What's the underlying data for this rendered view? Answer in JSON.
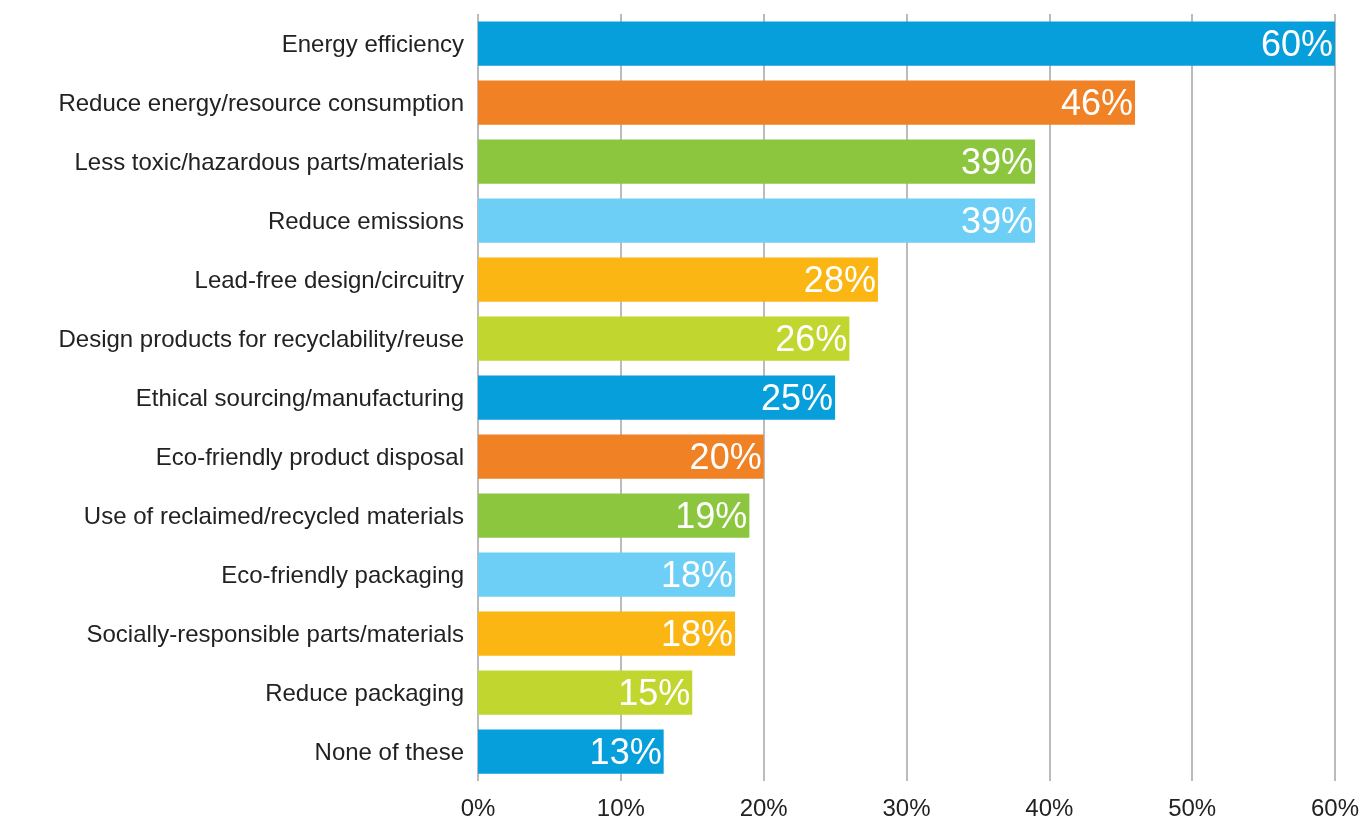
{
  "chart_data": {
    "type": "bar",
    "orientation": "horizontal",
    "categories": [
      "Energy efficiency",
      "Reduce energy/resource consumption",
      "Less toxic/hazardous parts/materials",
      "Reduce emissions",
      "Lead-free design/circuitry",
      "Design products for recyclability/reuse",
      "Ethical sourcing/manufacturing",
      "Eco-friendly product disposal",
      "Use of reclaimed/recycled materials",
      "Eco-friendly packaging",
      "Socially-responsible parts/materials",
      "Reduce packaging",
      "None of these"
    ],
    "values": [
      60,
      46,
      39,
      39,
      28,
      26,
      25,
      20,
      19,
      18,
      18,
      15,
      13
    ],
    "value_labels": [
      "60%",
      "46%",
      "39%",
      "39%",
      "28%",
      "26%",
      "25%",
      "20%",
      "19%",
      "18%",
      "18%",
      "15%",
      "13%"
    ],
    "colors": [
      "#069fdc",
      "#f08124",
      "#8cc63f",
      "#6dcff6",
      "#fbb614",
      "#c1d72f",
      "#069fdc",
      "#f08124",
      "#8cc63f",
      "#6dcff6",
      "#fbb614",
      "#c1d72f",
      "#069fdc"
    ],
    "xlim": [
      0,
      60
    ],
    "xticks": [
      {
        "value": 0,
        "label": "0%"
      },
      {
        "value": 10,
        "label": "10%"
      },
      {
        "value": 20,
        "label": "20%"
      },
      {
        "value": 30,
        "label": "30%"
      },
      {
        "value": 40,
        "label": "40%"
      },
      {
        "value": 50,
        "label": "50%"
      },
      {
        "value": 60,
        "label": "60%"
      }
    ],
    "grid": "x"
  }
}
